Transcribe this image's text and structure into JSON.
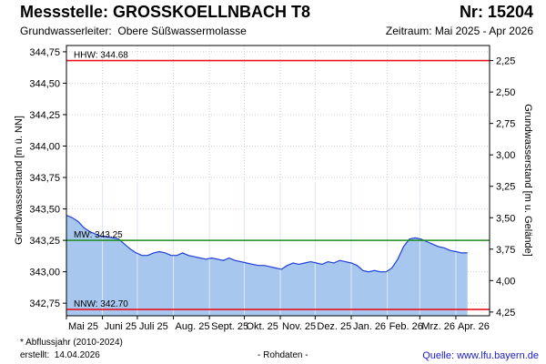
{
  "header": {
    "station_label": "Messstelle: GROSSKOELLNBACH T8",
    "number_label": "Nr: 15204",
    "aquifer_label": "Grundwasserleiter:",
    "aquifer_value": "Obere Süßwassermolasse",
    "period_label": "Zeitraum: Mai 2025 - Apr 2026"
  },
  "footer": {
    "footnote": "* Abflussjahr (2010-2024)",
    "created_label": "erstellt:",
    "created_date": "14.04.2026",
    "rawdata_note": "- Rohdaten -",
    "source_label": "Quelle:",
    "source_value": "www.lfu.bayern.de"
  },
  "colors": {
    "fill": "#a7c7ef",
    "line": "#1f3fd8",
    "hhw": "#e8141e",
    "nnw": "#e8141e",
    "mw": "#1f8c1f",
    "grid": "#d2d2d2"
  },
  "chart_data": {
    "type": "area",
    "xlabel": "",
    "ylabel": "Grundwasserstand [m ü. NN]",
    "ylabel_right": "Grundwasserstand [m u. Gelände]",
    "ylim": [
      342.65,
      344.8
    ],
    "yticks": [
      "344,75",
      "344,50",
      "344,25",
      "344,00",
      "343,75",
      "343,50",
      "343,25",
      "343,00",
      "342,75"
    ],
    "ytick_values": [
      344.75,
      344.5,
      344.25,
      344.0,
      343.75,
      343.5,
      343.25,
      343.0,
      342.75
    ],
    "yticks_right": [
      "2,25",
      "2,50",
      "2,75",
      "3,00",
      "3,25",
      "3,50",
      "3,75",
      "4,00",
      "4,25"
    ],
    "ytick_right_values": [
      2.25,
      2.5,
      2.75,
      3.0,
      3.25,
      3.5,
      3.75,
      4.0,
      4.25
    ],
    "x_domain": [
      "2025-05-01",
      "2026-04-30"
    ],
    "xticks": [
      {
        "label": "Mai 25",
        "date": "2025-05-01"
      },
      {
        "label": "Juni 25",
        "date": "2025-06-01"
      },
      {
        "label": "Juli 25",
        "date": "2025-07-01"
      },
      {
        "label": "Aug. 25",
        "date": "2025-08-01"
      },
      {
        "label": "Sept. 25",
        "date": "2025-09-01"
      },
      {
        "label": "Okt. 25",
        "date": "2025-10-01"
      },
      {
        "label": "Nov. 25",
        "date": "2025-11-01"
      },
      {
        "label": "Dez. 25",
        "date": "2025-12-01"
      },
      {
        "label": "Jan. 26",
        "date": "2026-01-01"
      },
      {
        "label": "Feb. 26",
        "date": "2026-02-01"
      },
      {
        "label": "Mrz. 26",
        "date": "2026-03-01"
      },
      {
        "label": "Apr. 26",
        "date": "2026-04-01"
      }
    ],
    "reference_lines": [
      {
        "label": "HHW: 344.68",
        "value": 344.68,
        "color": "#e8141e"
      },
      {
        "label": "MW: 343.25",
        "value": 343.25,
        "color": "#1f8c1f"
      },
      {
        "label": "NNW: 342.70",
        "value": 342.7,
        "color": "#e8141e"
      }
    ],
    "grid": true,
    "series": [
      {
        "points": [
          [
            "2025-05-01",
            343.45
          ],
          [
            "2025-05-06",
            343.43
          ],
          [
            "2025-05-11",
            343.4
          ],
          [
            "2025-05-16",
            343.35
          ],
          [
            "2025-05-21",
            343.32
          ],
          [
            "2025-05-26",
            343.3
          ],
          [
            "2025-05-31",
            343.28
          ],
          [
            "2025-06-05",
            343.28
          ],
          [
            "2025-06-10",
            343.27
          ],
          [
            "2025-06-15",
            343.26
          ],
          [
            "2025-06-20",
            343.22
          ],
          [
            "2025-06-25",
            343.18
          ],
          [
            "2025-06-30",
            343.15
          ],
          [
            "2025-07-05",
            343.13
          ],
          [
            "2025-07-10",
            343.13
          ],
          [
            "2025-07-15",
            343.15
          ],
          [
            "2025-07-20",
            343.16
          ],
          [
            "2025-07-25",
            343.15
          ],
          [
            "2025-07-30",
            343.13
          ],
          [
            "2025-08-04",
            343.13
          ],
          [
            "2025-08-09",
            343.15
          ],
          [
            "2025-08-14",
            343.13
          ],
          [
            "2025-08-19",
            343.12
          ],
          [
            "2025-08-24",
            343.11
          ],
          [
            "2025-08-29",
            343.1
          ],
          [
            "2025-09-03",
            343.11
          ],
          [
            "2025-09-08",
            343.1
          ],
          [
            "2025-09-13",
            343.09
          ],
          [
            "2025-09-18",
            343.11
          ],
          [
            "2025-09-23",
            343.09
          ],
          [
            "2025-09-28",
            343.08
          ],
          [
            "2025-10-03",
            343.07
          ],
          [
            "2025-10-08",
            343.06
          ],
          [
            "2025-10-13",
            343.05
          ],
          [
            "2025-10-18",
            343.05
          ],
          [
            "2025-10-23",
            343.04
          ],
          [
            "2025-10-28",
            343.03
          ],
          [
            "2025-11-02",
            343.02
          ],
          [
            "2025-11-07",
            343.05
          ],
          [
            "2025-11-12",
            343.07
          ],
          [
            "2025-11-17",
            343.06
          ],
          [
            "2025-11-22",
            343.07
          ],
          [
            "2025-11-27",
            343.08
          ],
          [
            "2025-12-02",
            343.07
          ],
          [
            "2025-12-07",
            343.06
          ],
          [
            "2025-12-12",
            343.08
          ],
          [
            "2025-12-17",
            343.07
          ],
          [
            "2025-12-22",
            343.09
          ],
          [
            "2025-12-27",
            343.08
          ],
          [
            "2026-01-01",
            343.07
          ],
          [
            "2026-01-06",
            343.05
          ],
          [
            "2026-01-11",
            343.01
          ],
          [
            "2026-01-16",
            343.0
          ],
          [
            "2026-01-21",
            343.01
          ],
          [
            "2026-01-26",
            343.0
          ],
          [
            "2026-01-31",
            343.0
          ],
          [
            "2026-02-05",
            343.03
          ],
          [
            "2026-02-10",
            343.1
          ],
          [
            "2026-02-15",
            343.2
          ],
          [
            "2026-02-20",
            343.26
          ],
          [
            "2026-02-25",
            343.27
          ],
          [
            "2026-03-02",
            343.26
          ],
          [
            "2026-03-07",
            343.24
          ],
          [
            "2026-03-12",
            343.22
          ],
          [
            "2026-03-17",
            343.2
          ],
          [
            "2026-03-22",
            343.19
          ],
          [
            "2026-03-27",
            343.17
          ],
          [
            "2026-04-01",
            343.16
          ],
          [
            "2026-04-06",
            343.15
          ],
          [
            "2026-04-11",
            343.15
          ]
        ]
      }
    ]
  }
}
